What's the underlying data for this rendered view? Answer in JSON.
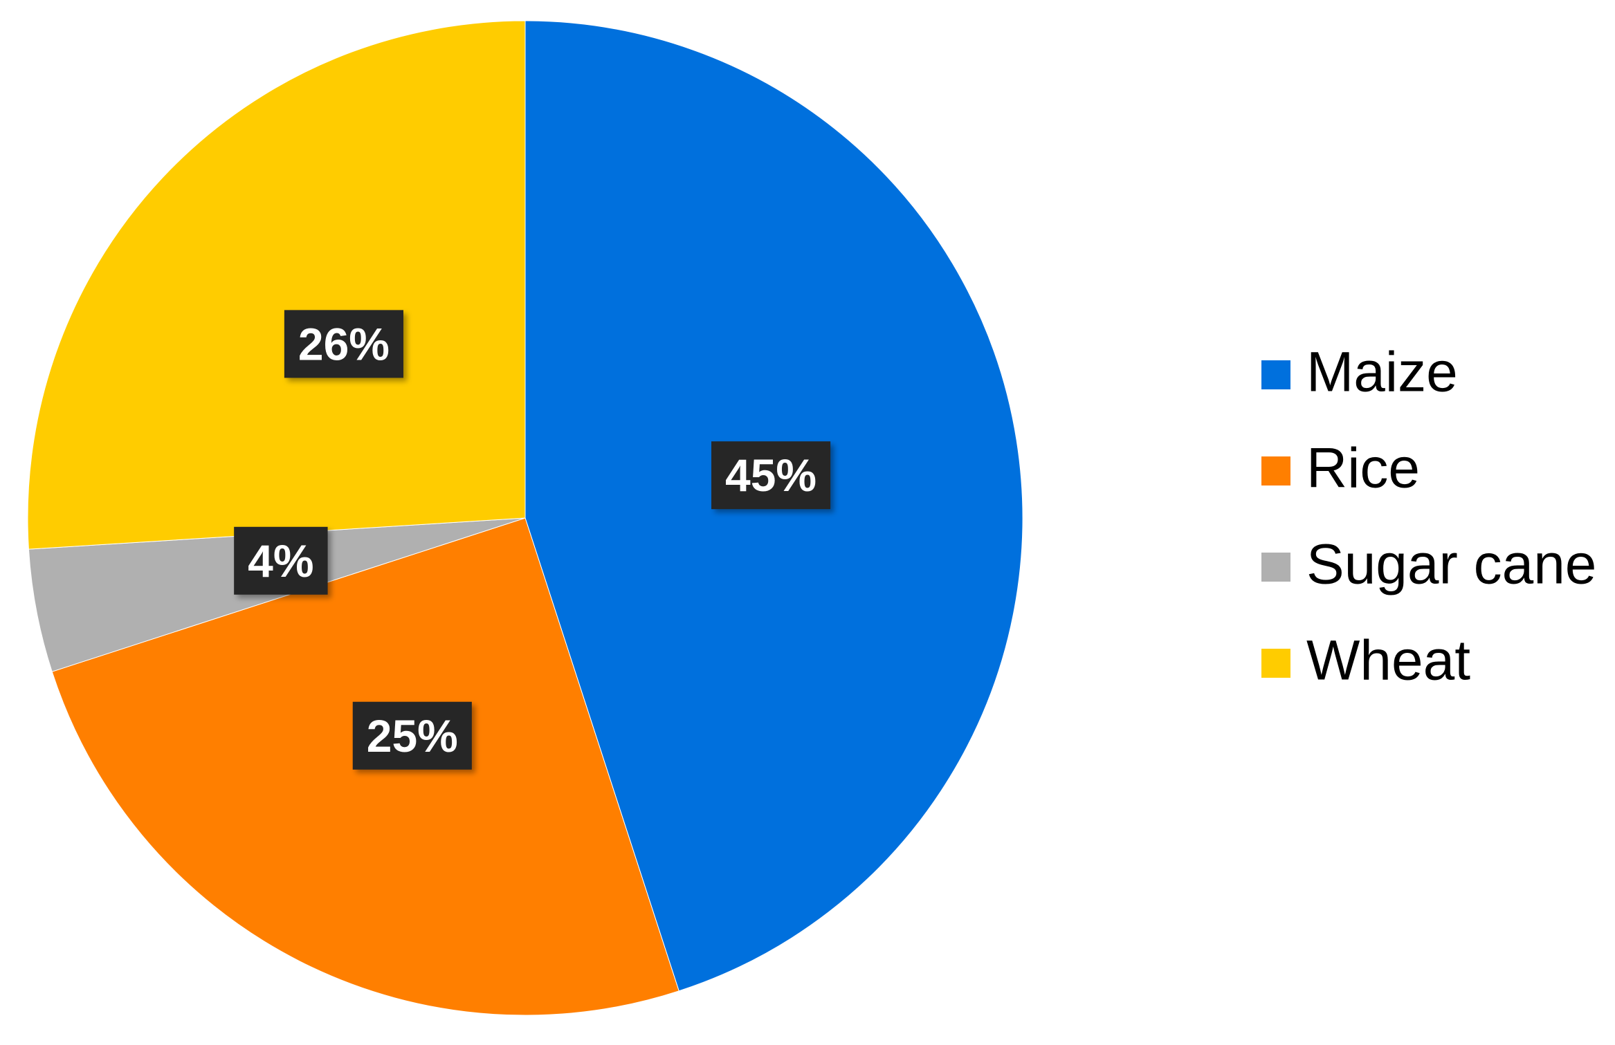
{
  "chart_data": {
    "type": "pie",
    "categories": [
      "Maize",
      "Rice",
      "Sugar cane",
      "Wheat"
    ],
    "values": [
      45,
      25,
      4,
      26
    ],
    "value_labels": [
      "45%",
      "25%",
      "4%",
      "26%"
    ],
    "colors": [
      "#0070dd",
      "#ff7f00",
      "#b0b0b0",
      "#ffcc00"
    ],
    "legend": "right"
  }
}
